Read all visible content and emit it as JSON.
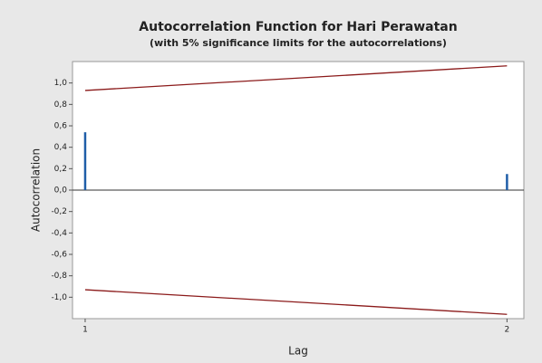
{
  "chart_data": {
    "type": "acf",
    "title": "Autocorrelation Function for Hari Perawatan",
    "subtitle": "(with 5% significance limits for the autocorrelations)",
    "x_label": "Lag",
    "y_label": "Autocorrelation",
    "x": [
      1,
      2
    ],
    "values": [
      0.54,
      0.15
    ],
    "upper_limit": [
      0.93,
      1.16
    ],
    "lower_limit": [
      -0.93,
      -1.16
    ],
    "color": "#1f5ea8",
    "limit_color": "#8b1a1a",
    "xlim": [
      0.97,
      2.04
    ],
    "xticks": [
      1,
      2
    ],
    "ylim": [
      -1.2,
      1.2
    ],
    "yticks": [
      {
        "value": -1,
        "label": "-1,0"
      },
      {
        "value": -0.8,
        "label": "-0,8"
      },
      {
        "value": -0.6,
        "label": "-0,6"
      },
      {
        "value": -0.4,
        "label": "-0,4"
      },
      {
        "value": -0.2,
        "label": "-0,2"
      },
      {
        "value": 0,
        "label": "0,0"
      },
      {
        "value": 0.2,
        "label": "0,2"
      },
      {
        "value": 0.4,
        "label": "0,4"
      },
      {
        "value": 0.6,
        "label": "0,6"
      },
      {
        "value": 0.8,
        "label": "0,8"
      },
      {
        "value": 1,
        "label": "1,0"
      }
    ]
  }
}
